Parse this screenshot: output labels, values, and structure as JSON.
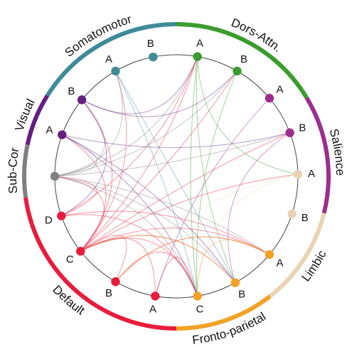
{
  "networks": [
    {
      "key": "somatomotor",
      "name": "Somatomotor",
      "color": "#3e8a98"
    },
    {
      "key": "dors-attn",
      "name": "Dors-Attn.",
      "color": "#3a9c2e"
    },
    {
      "key": "salience",
      "name": "Salience",
      "color": "#9b2e8e"
    },
    {
      "key": "limbic",
      "name": "Limbic",
      "color": "#ead3b4"
    },
    {
      "key": "fronto-parietal",
      "name": "Fronto-parietal",
      "color": "#f0a224"
    },
    {
      "key": "default",
      "name": "Default",
      "color": "#e81c3c"
    },
    {
      "key": "sub-cor",
      "name": "Sub-Cor",
      "color": "#808080"
    },
    {
      "key": "visual",
      "name": "Visual",
      "color": "#641f80"
    }
  ],
  "nodes": [
    {
      "id": "som-a",
      "network": "somatomotor",
      "label": "A"
    },
    {
      "id": "som-b",
      "network": "somatomotor",
      "label": "B"
    },
    {
      "id": "dan-a",
      "network": "dors-attn",
      "label": "A"
    },
    {
      "id": "dan-b",
      "network": "dors-attn",
      "label": "B"
    },
    {
      "id": "sal-a",
      "network": "salience",
      "label": "A"
    },
    {
      "id": "sal-b",
      "network": "salience",
      "label": "B"
    },
    {
      "id": "lim-a",
      "network": "limbic",
      "label": "A"
    },
    {
      "id": "lim-b",
      "network": "limbic",
      "label": "B"
    },
    {
      "id": "fp-a",
      "network": "fronto-parietal",
      "label": "A"
    },
    {
      "id": "fp-b",
      "network": "fronto-parietal",
      "label": "B"
    },
    {
      "id": "fp-c",
      "network": "fronto-parietal",
      "label": "C"
    },
    {
      "id": "dmn-a",
      "network": "default",
      "label": "A"
    },
    {
      "id": "dmn-b",
      "network": "default",
      "label": "B"
    },
    {
      "id": "dmn-c",
      "network": "default",
      "label": "C"
    },
    {
      "id": "dmn-d",
      "network": "default",
      "label": "D"
    },
    {
      "id": "sub",
      "network": "sub-cor",
      "label": ""
    },
    {
      "id": "vis-a",
      "network": "visual",
      "label": "A"
    },
    {
      "id": "vis-b",
      "network": "visual",
      "label": "B"
    }
  ],
  "edges": [
    [
      "dmn-c",
      "dan-a"
    ],
    [
      "dmn-c",
      "dan-b"
    ],
    [
      "dmn-c",
      "sal-b"
    ],
    [
      "dmn-c",
      "lim-a"
    ],
    [
      "dmn-c",
      "fp-a"
    ],
    [
      "dmn-c",
      "fp-b"
    ],
    [
      "dmn-c",
      "fp-c"
    ],
    [
      "dmn-c",
      "dmn-a"
    ],
    [
      "dmn-c",
      "dmn-b"
    ],
    [
      "dmn-c",
      "som-a"
    ],
    [
      "dmn-c",
      "vis-a"
    ],
    [
      "dmn-c",
      "vis-b"
    ],
    [
      "dmn-c",
      "sub"
    ],
    [
      "dmn-d",
      "sub"
    ],
    [
      "dmn-d",
      "fp-c"
    ],
    [
      "dmn-d",
      "fp-a"
    ],
    [
      "dmn-d",
      "dan-a"
    ],
    [
      "dmn-b",
      "fp-c"
    ],
    [
      "dmn-a",
      "fp-c"
    ],
    [
      "dmn-b",
      "fp-a"
    ],
    [
      "sub",
      "dan-a"
    ],
    [
      "sub",
      "dan-b"
    ],
    [
      "sub",
      "som-a"
    ],
    [
      "sub",
      "vis-a"
    ],
    [
      "sub",
      "vis-b"
    ],
    [
      "sub",
      "sal-b"
    ],
    [
      "sub",
      "fp-b"
    ],
    [
      "sub",
      "fp-a"
    ],
    [
      "sub",
      "fp-c"
    ],
    [
      "vis-b",
      "dan-a"
    ],
    [
      "vis-b",
      "dan-b"
    ],
    [
      "vis-b",
      "dmn-d"
    ],
    [
      "vis-a",
      "fp-c"
    ],
    [
      "vis-a",
      "fp-b"
    ],
    [
      "vis-a",
      "sal-b"
    ],
    [
      "som-a",
      "fp-c"
    ],
    [
      "som-a",
      "fp-b"
    ],
    [
      "dan-a",
      "fp-c"
    ],
    [
      "dan-a",
      "fp-b"
    ],
    [
      "dan-a",
      "lim-a"
    ],
    [
      "dan-b",
      "fp-c"
    ],
    [
      "lim-a",
      "fp-c"
    ],
    [
      "lim-a",
      "dmn-b"
    ],
    [
      "sal-b",
      "fp-b"
    ],
    [
      "sal-a",
      "dmn-a"
    ],
    [
      "fp-a",
      "dmn-b"
    ],
    [
      "fp-b",
      "dmn-c"
    ],
    [
      "fp-a",
      "fp-c"
    ]
  ]
}
